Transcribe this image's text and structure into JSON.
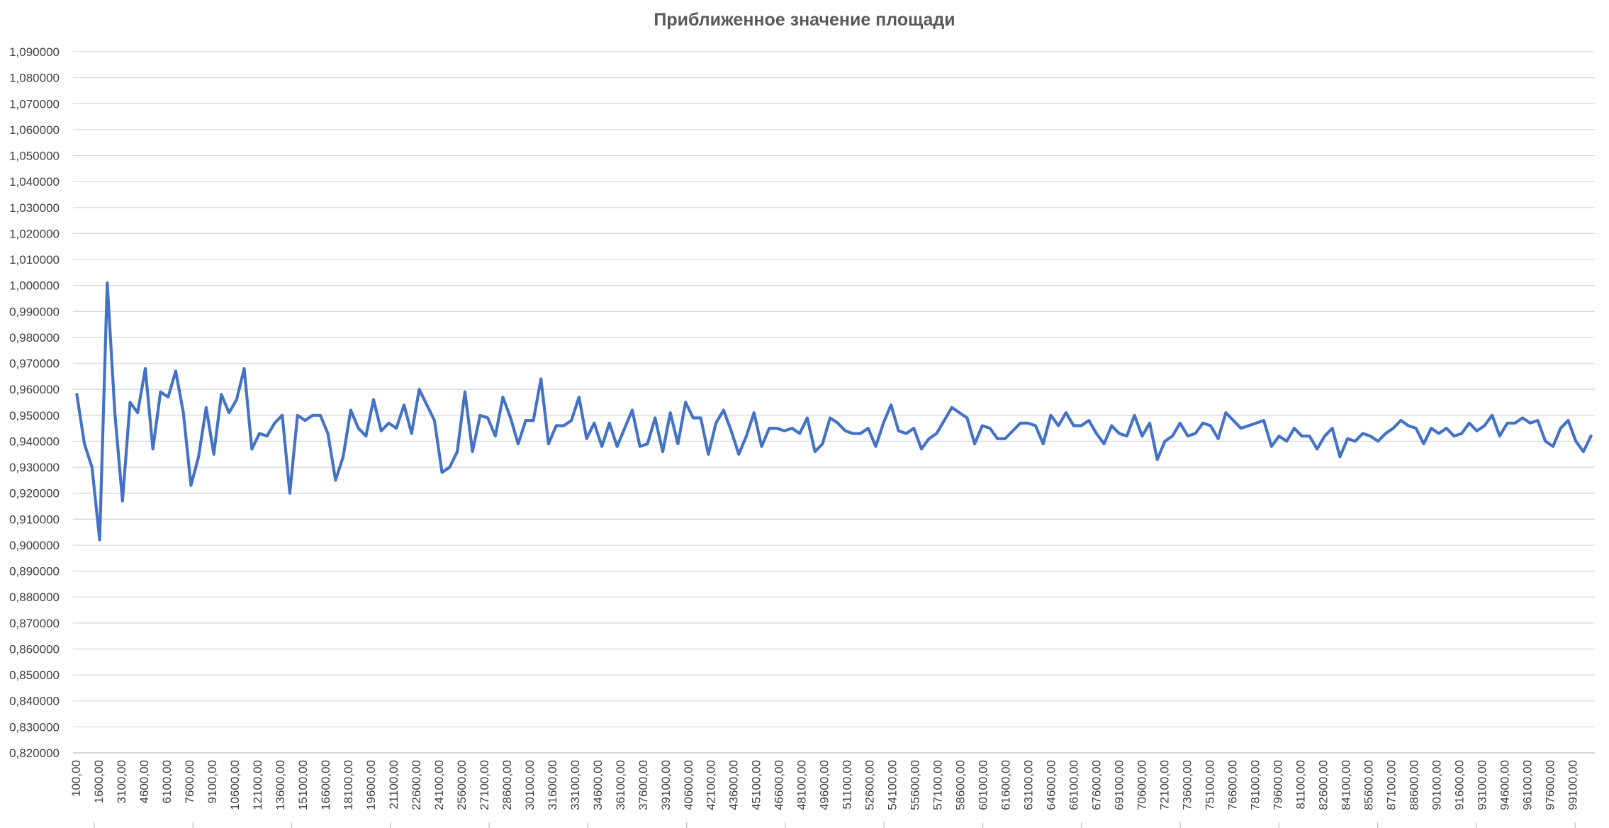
{
  "chart_data": {
    "type": "line",
    "title": "Приближенное значение площади",
    "xlabel": "",
    "ylabel": "",
    "ylim": [
      0.82,
      1.09
    ],
    "y_tick_labels": [
      "0,820000",
      "0,830000",
      "0,840000",
      "0,850000",
      "0,860000",
      "0,870000",
      "0,880000",
      "0,890000",
      "0,900000",
      "0,910000",
      "0,920000",
      "0,930000",
      "0,940000",
      "0,950000",
      "0,960000",
      "0,970000",
      "0,980000",
      "0,990000",
      "1,000000",
      "1,010000",
      "1,020000",
      "1,030000",
      "1,040000",
      "1,050000",
      "1,060000",
      "1,070000",
      "1,080000",
      "1,090000"
    ],
    "x_tick_labels": [
      "100,00",
      "1600,00",
      "3100,00",
      "4600,00",
      "6100,00",
      "7600,00",
      "9100,00",
      "10600,00",
      "12100,00",
      "13600,00",
      "15100,00",
      "16600,00",
      "18100,00",
      "19600,00",
      "21100,00",
      "22600,00",
      "24100,00",
      "25600,00",
      "27100,00",
      "28600,00",
      "30100,00",
      "31600,00",
      "33100,00",
      "34600,00",
      "36100,00",
      "37600,00",
      "39100,00",
      "40600,00",
      "42100,00",
      "43600,00",
      "45100,00",
      "46600,00",
      "48100,00",
      "49600,00",
      "51100,00",
      "52600,00",
      "54100,00",
      "55600,00",
      "57100,00",
      "58600,00",
      "60100,00",
      "61600,00",
      "63100,00",
      "64600,00",
      "66100,00",
      "67600,00",
      "69100,00",
      "70600,00",
      "72100,00",
      "73600,00",
      "75100,00",
      "76600,00",
      "78100,00",
      "79600,00",
      "81100,00",
      "82600,00",
      "84100,00",
      "85600,00",
      "87100,00",
      "88600,00",
      "90100,00",
      "91600,00",
      "93100,00",
      "94600,00",
      "96100,00",
      "97600,00",
      "99100,00"
    ],
    "grid": true,
    "legend": "none",
    "series": [
      {
        "values": [
          0.958,
          0.939,
          0.93,
          0.902,
          1.001,
          0.951,
          0.917,
          0.955,
          0.951,
          0.968,
          0.937,
          0.959,
          0.957,
          0.967,
          0.951,
          0.923,
          0.934,
          0.953,
          0.935,
          0.958,
          0.951,
          0.956,
          0.968,
          0.937,
          0.943,
          0.942,
          0.947,
          0.95,
          0.92,
          0.95,
          0.948,
          0.95,
          0.95,
          0.943,
          0.925,
          0.934,
          0.952,
          0.945,
          0.942,
          0.956,
          0.944,
          0.947,
          0.945,
          0.954,
          0.943,
          0.96,
          0.954,
          0.948,
          0.928,
          0.93,
          0.936,
          0.959,
          0.936,
          0.95,
          0.949,
          0.942,
          0.957,
          0.949,
          0.939,
          0.948,
          0.948,
          0.964,
          0.939,
          0.946,
          0.946,
          0.948,
          0.957,
          0.941,
          0.947,
          0.938,
          0.947,
          0.938,
          0.945,
          0.952,
          0.938,
          0.939,
          0.949,
          0.936,
          0.951,
          0.939,
          0.955,
          0.949,
          0.949,
          0.935,
          0.947,
          0.952,
          0.944,
          0.935,
          0.942,
          0.951,
          0.938,
          0.945,
          0.945,
          0.944,
          0.945,
          0.943,
          0.949,
          0.936,
          0.939,
          0.949,
          0.947,
          0.944,
          0.943,
          0.943,
          0.945,
          0.938,
          0.947,
          0.954,
          0.944,
          0.943,
          0.945,
          0.937,
          0.941,
          0.943,
          0.948,
          0.953,
          0.951,
          0.949,
          0.939,
          0.946,
          0.945,
          0.941,
          0.941,
          0.944,
          0.947,
          0.947,
          0.946,
          0.939,
          0.95,
          0.946,
          0.951,
          0.946,
          0.946,
          0.948,
          0.943,
          0.939,
          0.946,
          0.943,
          0.942,
          0.95,
          0.942,
          0.947,
          0.933,
          0.94,
          0.942,
          0.947,
          0.942,
          0.943,
          0.947,
          0.946,
          0.941,
          0.951,
          0.948,
          0.945,
          0.946,
          0.947,
          0.948,
          0.938,
          0.942,
          0.94,
          0.945,
          0.942,
          0.942,
          0.937,
          0.942,
          0.945,
          0.934,
          0.941,
          0.94,
          0.943,
          0.942,
          0.94,
          0.943,
          0.945,
          0.948,
          0.946,
          0.945,
          0.939,
          0.945,
          0.943,
          0.945,
          0.942,
          0.943,
          0.947,
          0.944,
          0.946,
          0.95,
          0.942,
          0.947,
          0.947,
          0.949,
          0.947,
          0.948,
          0.94,
          0.938,
          0.945,
          0.948,
          0.94,
          0.936,
          0.942
        ]
      }
    ]
  }
}
